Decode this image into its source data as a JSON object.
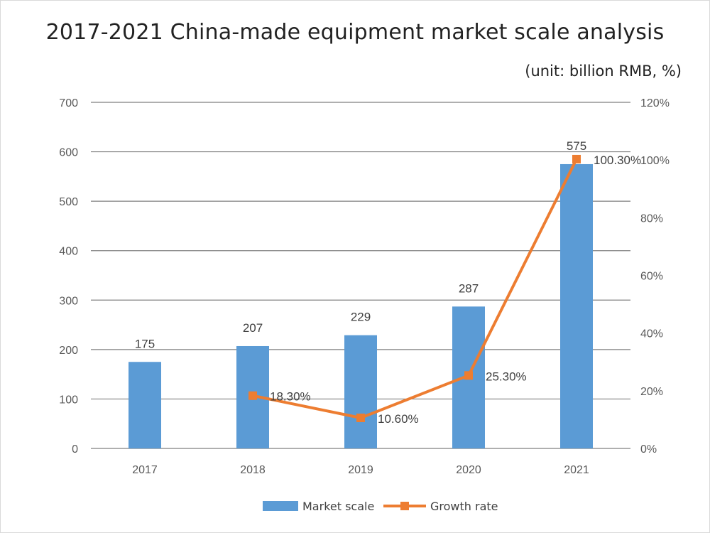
{
  "title": "2017-2021 China-made equipment market scale analysis",
  "subtitle": "(unit: billion RMB, %)",
  "colors": {
    "bar": "#5b9bd5",
    "line": "#ed7d31",
    "grid": "#7f7f7f"
  },
  "chart_data": {
    "type": "bar",
    "title": "2017-2021 China-made equipment market scale analysis",
    "subtitle": "(unit: billion RMB, %)",
    "categories": [
      "2017",
      "2018",
      "2019",
      "2020",
      "2021"
    ],
    "series": [
      {
        "name": "Market scale",
        "type": "bar",
        "axis": "left",
        "values": [
          175,
          207,
          229,
          287,
          575
        ],
        "labels": [
          "175",
          "207",
          "229",
          "287",
          "575"
        ]
      },
      {
        "name": "Growth rate",
        "type": "line",
        "axis": "right",
        "values": [
          null,
          18.3,
          10.6,
          25.3,
          100.3
        ],
        "labels": [
          "",
          "18.30%",
          "10.60%",
          "25.30%",
          "100.30%"
        ]
      }
    ],
    "ylim": [
      0,
      700
    ],
    "yticks": [
      "0",
      "100",
      "200",
      "300",
      "400",
      "500",
      "600",
      "700"
    ],
    "y2lim": [
      0,
      120
    ],
    "y2ticks": [
      "0%",
      "20%",
      "40%",
      "60%",
      "80%",
      "100%",
      "120%"
    ],
    "grid": true,
    "legend": "bottom"
  }
}
